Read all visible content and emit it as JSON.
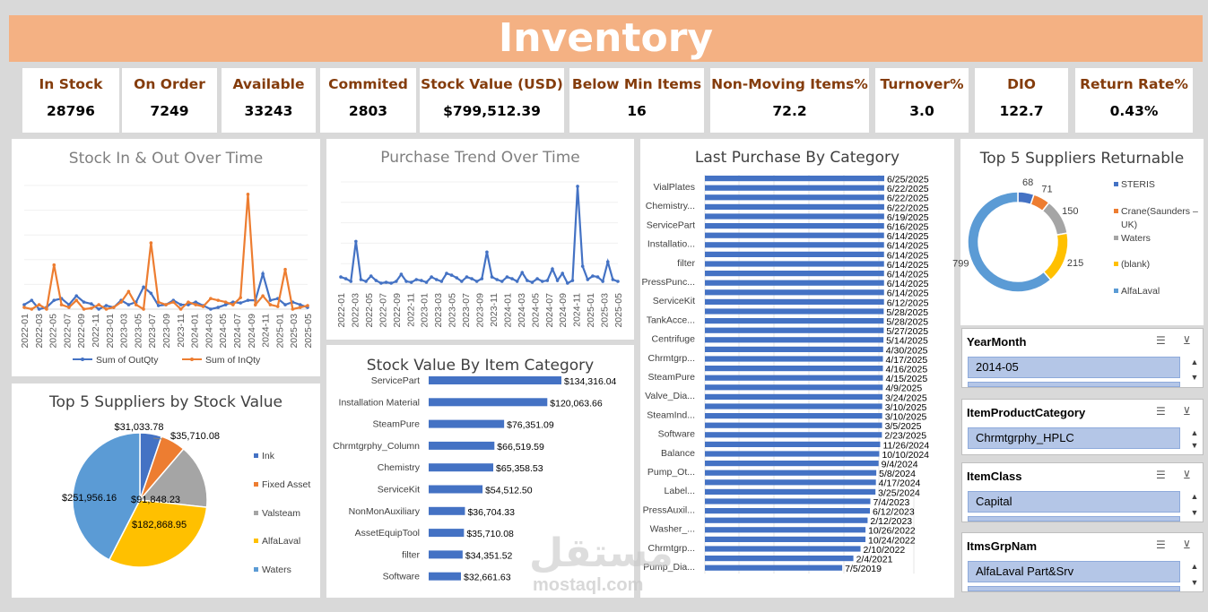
{
  "title": "Inventory",
  "kpis": [
    {
      "label": "In Stock",
      "value": "28796"
    },
    {
      "label": "On Order",
      "value": "7249"
    },
    {
      "label": "Available",
      "value": "33243"
    },
    {
      "label": "Commited",
      "value": "2803"
    },
    {
      "label": "Stock Value (USD)",
      "value": "$799,512.39"
    },
    {
      "label": "Below Min Items",
      "value": "16"
    },
    {
      "label": "Non-Moving Items%",
      "value": "72.2"
    },
    {
      "label": "Turnover%",
      "value": "3.0"
    },
    {
      "label": "DIO",
      "value": "122.7"
    },
    {
      "label": "Return Rate%",
      "value": "0.43%"
    }
  ],
  "colors": {
    "blue": "#4472c4",
    "orange": "#ed7d31",
    "gray": "#a5a5a5",
    "yellow": "#ffc000",
    "lightblue": "#5b9bd5",
    "banner": "#f4b183",
    "kpi_label": "#843c0c"
  },
  "chart_data": [
    {
      "id": "stock-in-out",
      "type": "line",
      "title": "Stock In & Out Over Time",
      "x_tick_labels": [
        "2022-01",
        "2022-03",
        "2022-05",
        "2022-07",
        "2022-09",
        "2022-11",
        "2023-01",
        "2023-03",
        "2023-05",
        "2023-07",
        "2023-09",
        "2023-11",
        "2024-01",
        "2024-03",
        "2024-05",
        "2024-07",
        "2024-09",
        "2024-11",
        "2025-01",
        "2025-03",
        "2025-05"
      ],
      "series": [
        {
          "name": "Sum of OutQty",
          "color": "#4472c4",
          "values": [
            5,
            10,
            0,
            2,
            10,
            12,
            5,
            15,
            8,
            6,
            0,
            4,
            2,
            10,
            5,
            8,
            25,
            18,
            4,
            5,
            10,
            5,
            5,
            8,
            4,
            0,
            2,
            5,
            8,
            7,
            10,
            10,
            40,
            10,
            12,
            5,
            8,
            5,
            2
          ]
        },
        {
          "name": "Sum of InQty",
          "color": "#ed7d31",
          "values": [
            2,
            0,
            5,
            0,
            50,
            5,
            2,
            10,
            0,
            1,
            5,
            0,
            2,
            8,
            20,
            5,
            0,
            75,
            8,
            5,
            8,
            0,
            8,
            5,
            3,
            12,
            10,
            8,
            5,
            13,
            130,
            5,
            15,
            5,
            3,
            45,
            0,
            2,
            4
          ]
        }
      ]
    },
    {
      "id": "purchase-trend",
      "type": "line",
      "title": "Purchase Trend Over Time",
      "x_tick_labels": [
        "2022-01",
        "2022-03",
        "2022-05",
        "2022-07",
        "2022-09",
        "2022-11",
        "2023-01",
        "2023-03",
        "2023-05",
        "2023-07",
        "2023-09",
        "2023-11",
        "2024-01",
        "2024-03",
        "2024-05",
        "2024-07",
        "2024-09",
        "2024-11",
        "2025-01",
        "2025-03",
        "2025-05"
      ],
      "series": [
        {
          "name": "Purchase",
          "color": "#4472c4",
          "values": [
            8,
            6,
            3,
            48,
            5,
            3,
            9,
            4,
            1,
            2,
            1,
            3,
            11,
            3,
            2,
            5,
            4,
            2,
            8,
            5,
            3,
            12,
            10,
            7,
            3,
            8,
            6,
            3,
            6,
            36,
            8,
            5,
            3,
            8,
            6,
            3,
            13,
            4,
            2,
            6,
            3,
            4,
            17,
            4,
            12,
            1,
            4,
            110,
            20,
            5,
            9,
            8,
            3,
            25,
            5,
            3
          ]
        }
      ]
    },
    {
      "id": "last-purchase",
      "type": "bar",
      "title": "Last Purchase By Category",
      "category_labels": [
        "VialPlates",
        "Chemistry...",
        "ServicePart",
        "Installatio...",
        "filter",
        "PressPunc...",
        "ServiceKit",
        "TankAcce...",
        "Centrifuge",
        "Chrmtgrp...",
        "SteamPure",
        "Valve_Dia...",
        "SteamInd...",
        "Software",
        "Balance",
        "Pump_Ot...",
        "Label...",
        "PressAuxil...",
        "Washer_...",
        "Chrmtgrp...",
        "Pump_Dia..."
      ],
      "bar_labels": [
        "6/25/2025",
        "6/22/2025",
        "6/22/2025",
        "6/22/2025",
        "6/19/2025",
        "6/16/2025",
        "6/14/2025",
        "6/14/2025",
        "6/14/2025",
        "6/14/2025",
        "6/14/2025",
        "6/14/2025",
        "6/14/2025",
        "6/12/2025",
        "5/28/2025",
        "5/28/2025",
        "5/27/2025",
        "5/14/2025",
        "4/30/2025",
        "4/17/2025",
        "4/16/2025",
        "4/15/2025",
        "4/9/2025",
        "3/24/2025",
        "3/10/2025",
        "3/10/2025",
        "3/5/2025",
        "2/23/2025",
        "11/26/2024",
        "10/10/2024",
        "9/4/2024",
        "5/8/2024",
        "4/17/2024",
        "3/25/2024",
        "7/4/2023",
        "6/12/2023",
        "2/12/2023",
        "10/26/2022",
        "10/24/2022",
        "2/10/2022",
        "2/4/2021",
        "7/5/2019"
      ]
    },
    {
      "id": "top5-returnable",
      "type": "pie",
      "title": "Top 5 Suppliers Returnable",
      "categories": [
        "STERIS",
        "Crane(Saunders – UK)",
        "Waters",
        "(blank)",
        "AlfaLaval"
      ],
      "values": [
        68,
        71,
        150,
        215,
        799
      ],
      "colors": [
        "#4472c4",
        "#ed7d31",
        "#a5a5a5",
        "#ffc000",
        "#5b9bd5"
      ]
    },
    {
      "id": "top5-stock-value",
      "type": "pie",
      "title": "Top 5 Suppliers by Stock Value",
      "categories": [
        "Ink",
        "Fixed Asset",
        "Valsteam",
        "AlfaLaval",
        "Waters"
      ],
      "values": [
        31033.78,
        35710.08,
        91848.23,
        182868.95,
        251956.16
      ],
      "value_labels": [
        "$31,033.78",
        "$35,710.08",
        "$91,848.23",
        "$182,868.95",
        "$251,956.16"
      ],
      "colors": [
        "#4472c4",
        "#ed7d31",
        "#a5a5a5",
        "#ffc000",
        "#5b9bd5"
      ]
    },
    {
      "id": "stock-value-category",
      "type": "bar",
      "title": "Stock Value By Item Category",
      "categories": [
        "ServicePart",
        "Installation Material",
        "SteamPure",
        "Chrmtgrphy_Column",
        "Chemistry",
        "ServiceKit",
        "NonMonAuxiliary",
        "AssetEquipTool",
        "filter",
        "Software"
      ],
      "values": [
        134316.04,
        120063.66,
        76351.09,
        66519.59,
        65358.53,
        54512.5,
        36704.33,
        35710.08,
        34351.52,
        32661.63
      ],
      "value_labels": [
        "$134,316.04",
        "$120,063.66",
        "$76,351.09",
        "$66,519.59",
        "$65,358.53",
        "$54,512.50",
        "$36,704.33",
        "$35,710.08",
        "$34,351.52",
        "$32,661.63"
      ]
    }
  ],
  "slicers": [
    {
      "header": "YearMonth",
      "item": "2014-05"
    },
    {
      "header": "ItemProductCategory",
      "item": "Chrmtgrphy_HPLC"
    },
    {
      "header": "ItemClass",
      "item": "Capital"
    },
    {
      "header": "ItmsGrpNam",
      "item": "AlfaLaval Part&Srv"
    }
  ],
  "watermark": {
    "arabic": "مستقل",
    "latin": "mostaql.com"
  }
}
